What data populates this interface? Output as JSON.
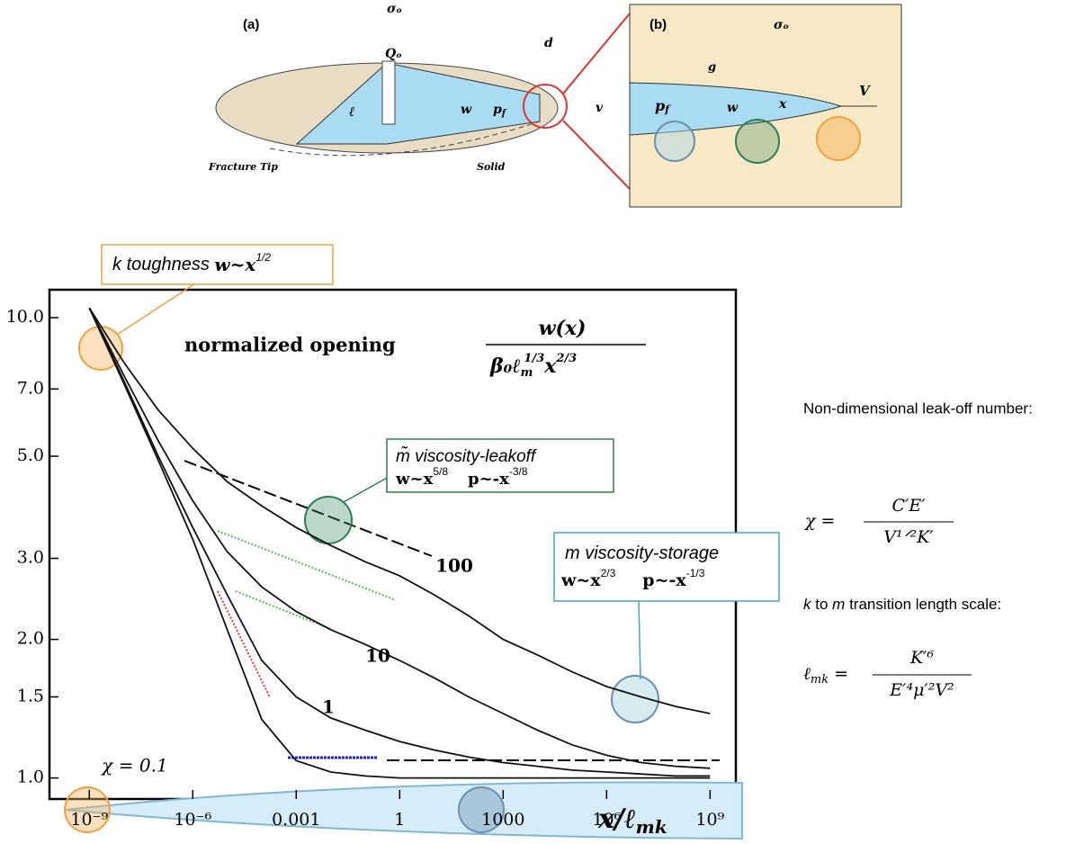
{
  "diagram": {
    "panel_a": "(a)",
    "panel_b": "(b)",
    "sigma_a": "σₒ",
    "sigma_b": "σₒ",
    "Q": "Qₒ",
    "d": "d",
    "ell": "ℓ",
    "w_a": "w",
    "p_a": "p",
    "p_a_sub": "f",
    "fracture_tip": "Fracture Tip",
    "solid": "Solid",
    "g": "g",
    "v": "v",
    "V": "V",
    "w_b": "w",
    "p_b": "p",
    "p_b_sub": "f",
    "x": "x"
  },
  "side": {
    "leakoff_title": "Non-dimensional leak-off number:",
    "leakoff_lhs": "χ =",
    "leakoff_num": "C′E′",
    "leakoff_den": "V¹ᐟ²K′",
    "scale_k": "k",
    "scale_title": "to",
    "scale_m": "m",
    "scale_rest": "transition length scale:",
    "scale_lhs": "ℓ",
    "scale_lhs_sub": "mk",
    "scale_eq": "=",
    "scale_num": "K′⁶",
    "scale_den": "E′⁴μ′²V²"
  },
  "chart_data": {
    "type": "line",
    "title": "normalized opening",
    "title_num": "w(x)",
    "title_den": {
      "base": "β₀ℓ",
      "sub": "m",
      "sup": "1/3",
      "var": "x",
      "var_sup": "2/3"
    },
    "x_label": "x/ℓ",
    "x_label_sub": "mk",
    "xlog": true,
    "ylog": true,
    "x": [
      1e-09,
      1e-08,
      1e-07,
      1e-06,
      1e-05,
      0.0001,
      0.001,
      0.01,
      0.1,
      1,
      10,
      100,
      1000,
      10000,
      100000,
      1000000,
      10000000,
      100000000,
      1000000000
    ],
    "series": [
      {
        "name": "χ = 0.1",
        "color": "#111111",
        "values": [
          10.5,
          7.2,
          4.9,
          3.3,
          2.1,
          1.34,
          1.09,
          1.03,
          1.01,
          1.0,
          1.0,
          1.0,
          1.0,
          1.0,
          1.0,
          1.0,
          1.0,
          1.0,
          1.0
        ]
      },
      {
        "name": "1",
        "color": "#111111",
        "values": [
          10.5,
          7.3,
          5.0,
          3.5,
          2.5,
          1.8,
          1.5,
          1.35,
          1.27,
          1.2,
          1.15,
          1.11,
          1.08,
          1.06,
          1.04,
          1.03,
          1.02,
          1.01,
          1.01
        ]
      },
      {
        "name": "10",
        "color": "#111111",
        "values": [
          10.5,
          7.5,
          5.4,
          4.0,
          3.1,
          2.6,
          2.3,
          2.1,
          1.95,
          1.8,
          1.65,
          1.5,
          1.38,
          1.27,
          1.18,
          1.12,
          1.08,
          1.06,
          1.05
        ]
      },
      {
        "name": "100",
        "color": "#111111",
        "values": [
          10.5,
          8.0,
          6.3,
          5.2,
          4.4,
          3.9,
          3.5,
          3.2,
          2.95,
          2.75,
          2.5,
          2.25,
          2.0,
          1.85,
          1.7,
          1.58,
          1.5,
          1.43,
          1.38
        ]
      }
    ],
    "xlim": [
      7e-11,
      5600000000.0
    ],
    "ylim": [
      0.9,
      11.5
    ],
    "xticks": [
      {
        "value": 1e-09,
        "label": "10⁻⁹"
      },
      {
        "value": 1e-06,
        "label": "10⁻⁶"
      },
      0.001,
      1,
      1000,
      {
        "value": 1000000,
        "label": "10⁶"
      },
      {
        "value": 1000000000,
        "label": "10⁹"
      }
    ],
    "yticks": [
      {
        "value": 1,
        "label": "1.0"
      },
      1.5,
      {
        "value": 2,
        "label": "2.0"
      },
      {
        "value": 3,
        "label": "3.0"
      },
      {
        "value": 5,
        "label": "5.0"
      },
      {
        "value": 7,
        "label": "7.0"
      },
      {
        "value": 10,
        "label": "10.0"
      }
    ],
    "annotations": {
      "k": {
        "symbol": "k",
        "label": "toughness",
        "w": "w~x",
        "w_exp": "1/2"
      },
      "mt": {
        "symbol": "m̃",
        "label": "viscosity-leakoff",
        "w": "w~x",
        "w_exp": "5/8",
        "p": "p~-x",
        "p_exp": "-3/8"
      },
      "m": {
        "symbol": "m",
        "label": "viscosity-storage",
        "w": "w~x",
        "w_exp": "2/3",
        "p": "p~-x",
        "p_exp": "-1/3"
      }
    }
  }
}
